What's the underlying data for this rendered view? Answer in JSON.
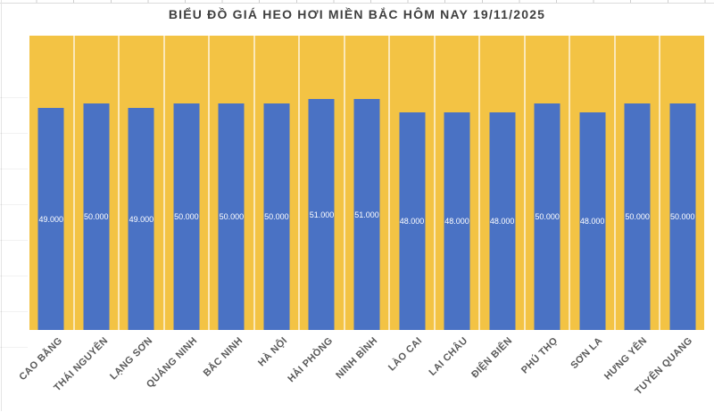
{
  "colors": {
    "bar": "#4A72C4",
    "plot_background": "#F3C344",
    "column_separator": "rgba(255,255,255,0.62)",
    "value_label_text": "#FFFFFF",
    "axis_label_text": "#595959",
    "title_text": "#3F3F3F",
    "spreadsheet_gridline": "#D4D4D4"
  },
  "chart_data": {
    "type": "bar",
    "title": "BIỂU ĐỒ GIÁ HEO HƠI MIỀN BẮC HÔM NAY 19/11/2025",
    "categories": [
      "CAO BẰNG",
      "THÁI NGUYÊN",
      "LẠNG SƠN",
      "QUẢNG NINH",
      "BẮC NINH",
      "HÀ NỘI",
      "HẢI PHÒNG",
      "NINH BÌNH",
      "LÀO CAI",
      "LAI CHÂU",
      "ĐIỆN BIÊN",
      "PHÚ THỌ",
      "SƠN LA",
      "HƯNG YÊN",
      "TUYÊN QUANG"
    ],
    "values": [
      49000,
      50000,
      49000,
      50000,
      50000,
      50000,
      51000,
      51000,
      48000,
      48000,
      48000,
      50000,
      48000,
      50000,
      50000
    ],
    "value_labels": [
      "49.000",
      "50.000",
      "49.000",
      "50.000",
      "50.000",
      "50.000",
      "51.000",
      "51.000",
      "48.000",
      "48.000",
      "48.000",
      "50.000",
      "48.000",
      "50.000",
      "50.000"
    ],
    "xlabel": "",
    "ylabel": "",
    "ylim": [
      0,
      65000
    ],
    "grid": "vertical white separators between category columns, no y-axis ticks shown",
    "legend": "none",
    "data_label_position": "center of bar",
    "x_label_rotation_deg": 45
  }
}
